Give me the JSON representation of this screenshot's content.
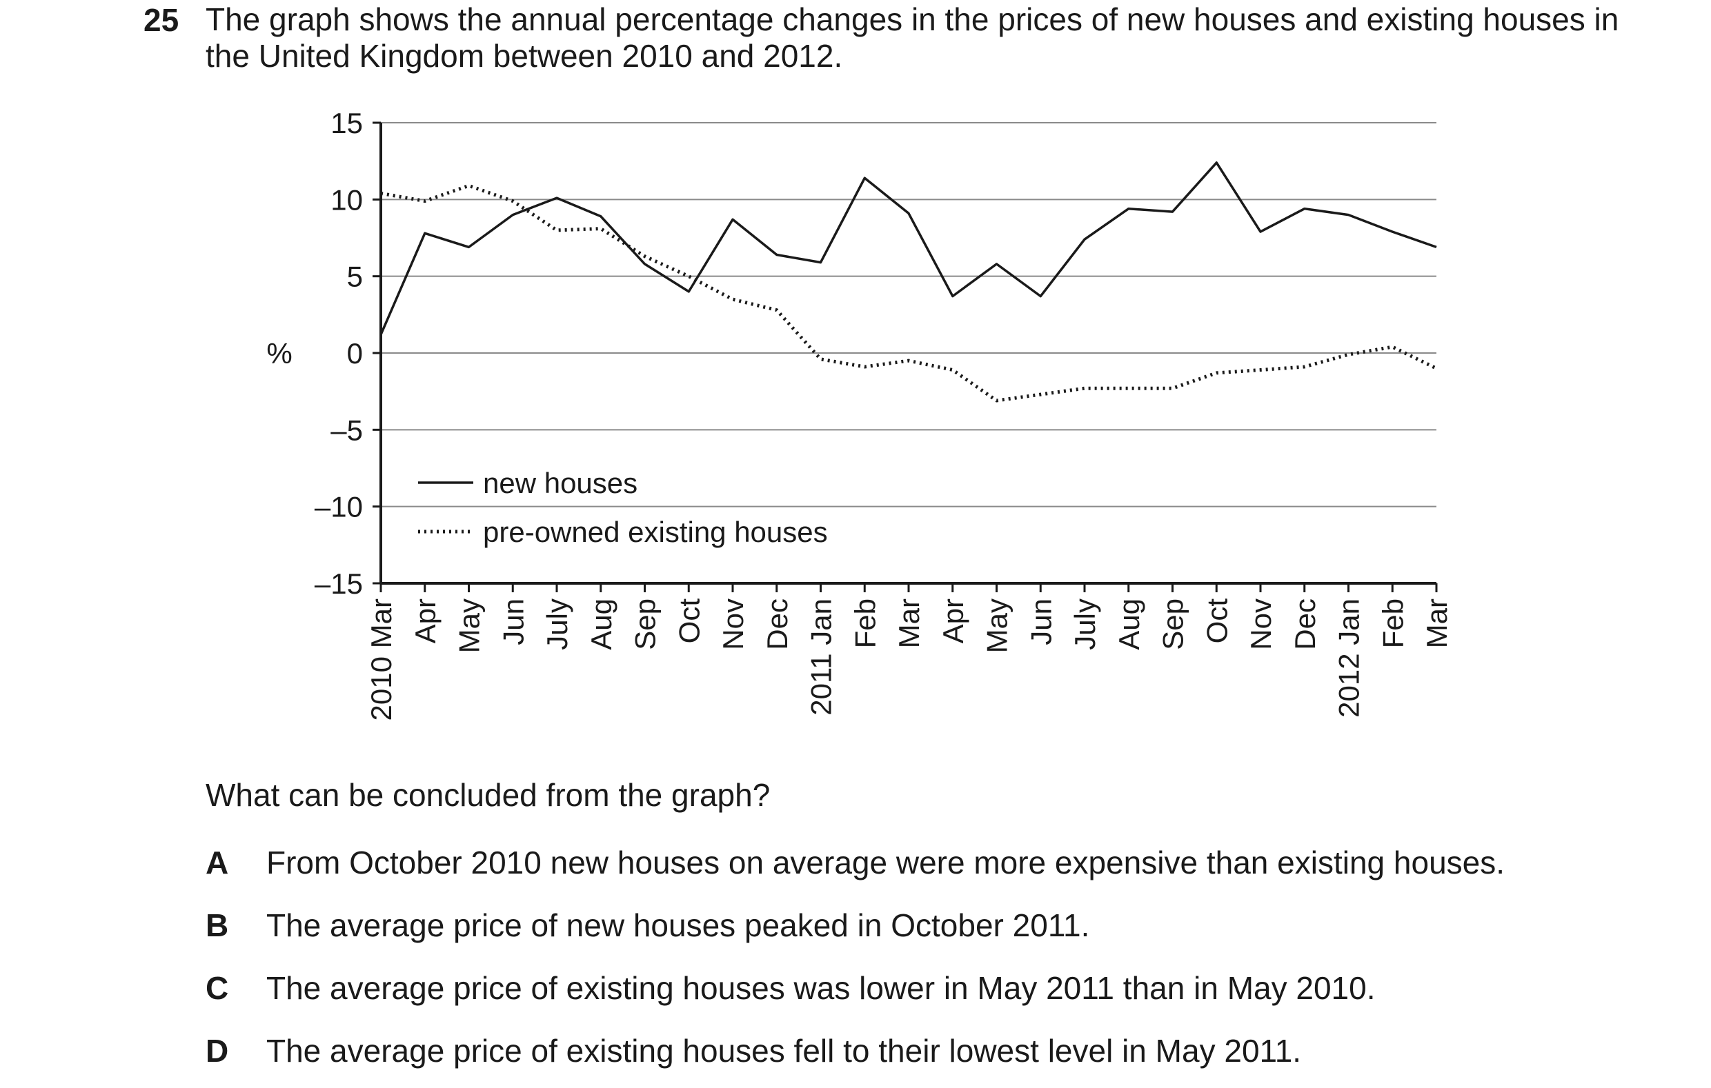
{
  "question": {
    "number": "25",
    "stem": "The graph shows the annual percentage changes in the prices of new houses and existing houses in the United Kingdom between 2010 and 2012.",
    "prompt": "What can be concluded from the graph?",
    "options": [
      {
        "letter": "A",
        "text": "From October 2010 new houses on average were more expensive than existing houses."
      },
      {
        "letter": "B",
        "text": "The average price of new houses peaked in October 2011."
      },
      {
        "letter": "C",
        "text": "The average price of existing houses was lower in May 2011 than in May 2010."
      },
      {
        "letter": "D",
        "text": "The average price of existing houses fell to their lowest level in May 2011."
      }
    ]
  },
  "chart_data": {
    "type": "line",
    "ylabel": "%",
    "ylim": [
      -15,
      15
    ],
    "yticks": [
      15,
      10,
      5,
      0,
      -5,
      -10,
      -15
    ],
    "ytick_labels": [
      "15",
      "10",
      "5",
      "0",
      "–5",
      "–10",
      "–15"
    ],
    "grid": true,
    "legend_position": "bottom-left",
    "categories": [
      "2010 Mar",
      "Apr",
      "May",
      "Jun",
      "July",
      "Aug",
      "Sep",
      "Oct",
      "Nov",
      "Dec",
      "2011 Jan",
      "Feb",
      "Mar",
      "Apr",
      "May",
      "Jun",
      "July",
      "Aug",
      "Sep",
      "Oct",
      "Nov",
      "Dec",
      "2012 Jan",
      "Feb",
      "Mar"
    ],
    "series": [
      {
        "name": "new houses",
        "style": "solid",
        "values": [
          1.2,
          7.8,
          6.9,
          9.0,
          10.1,
          8.9,
          5.8,
          4.0,
          8.7,
          6.4,
          5.9,
          11.4,
          9.1,
          3.7,
          5.8,
          3.7,
          7.4,
          9.4,
          9.2,
          12.4,
          7.9,
          9.4,
          9.0,
          7.9,
          6.9
        ]
      },
      {
        "name": "pre-owned existing houses",
        "style": "dotted",
        "values": [
          10.4,
          9.9,
          10.9,
          9.9,
          8.0,
          8.1,
          6.3,
          5.0,
          3.5,
          2.8,
          -0.4,
          -0.9,
          -0.5,
          -1.1,
          -3.1,
          -2.7,
          -2.3,
          -2.3,
          -2.3,
          -1.3,
          -1.1,
          -0.9,
          -0.1,
          0.4,
          -1.0
        ]
      }
    ]
  }
}
